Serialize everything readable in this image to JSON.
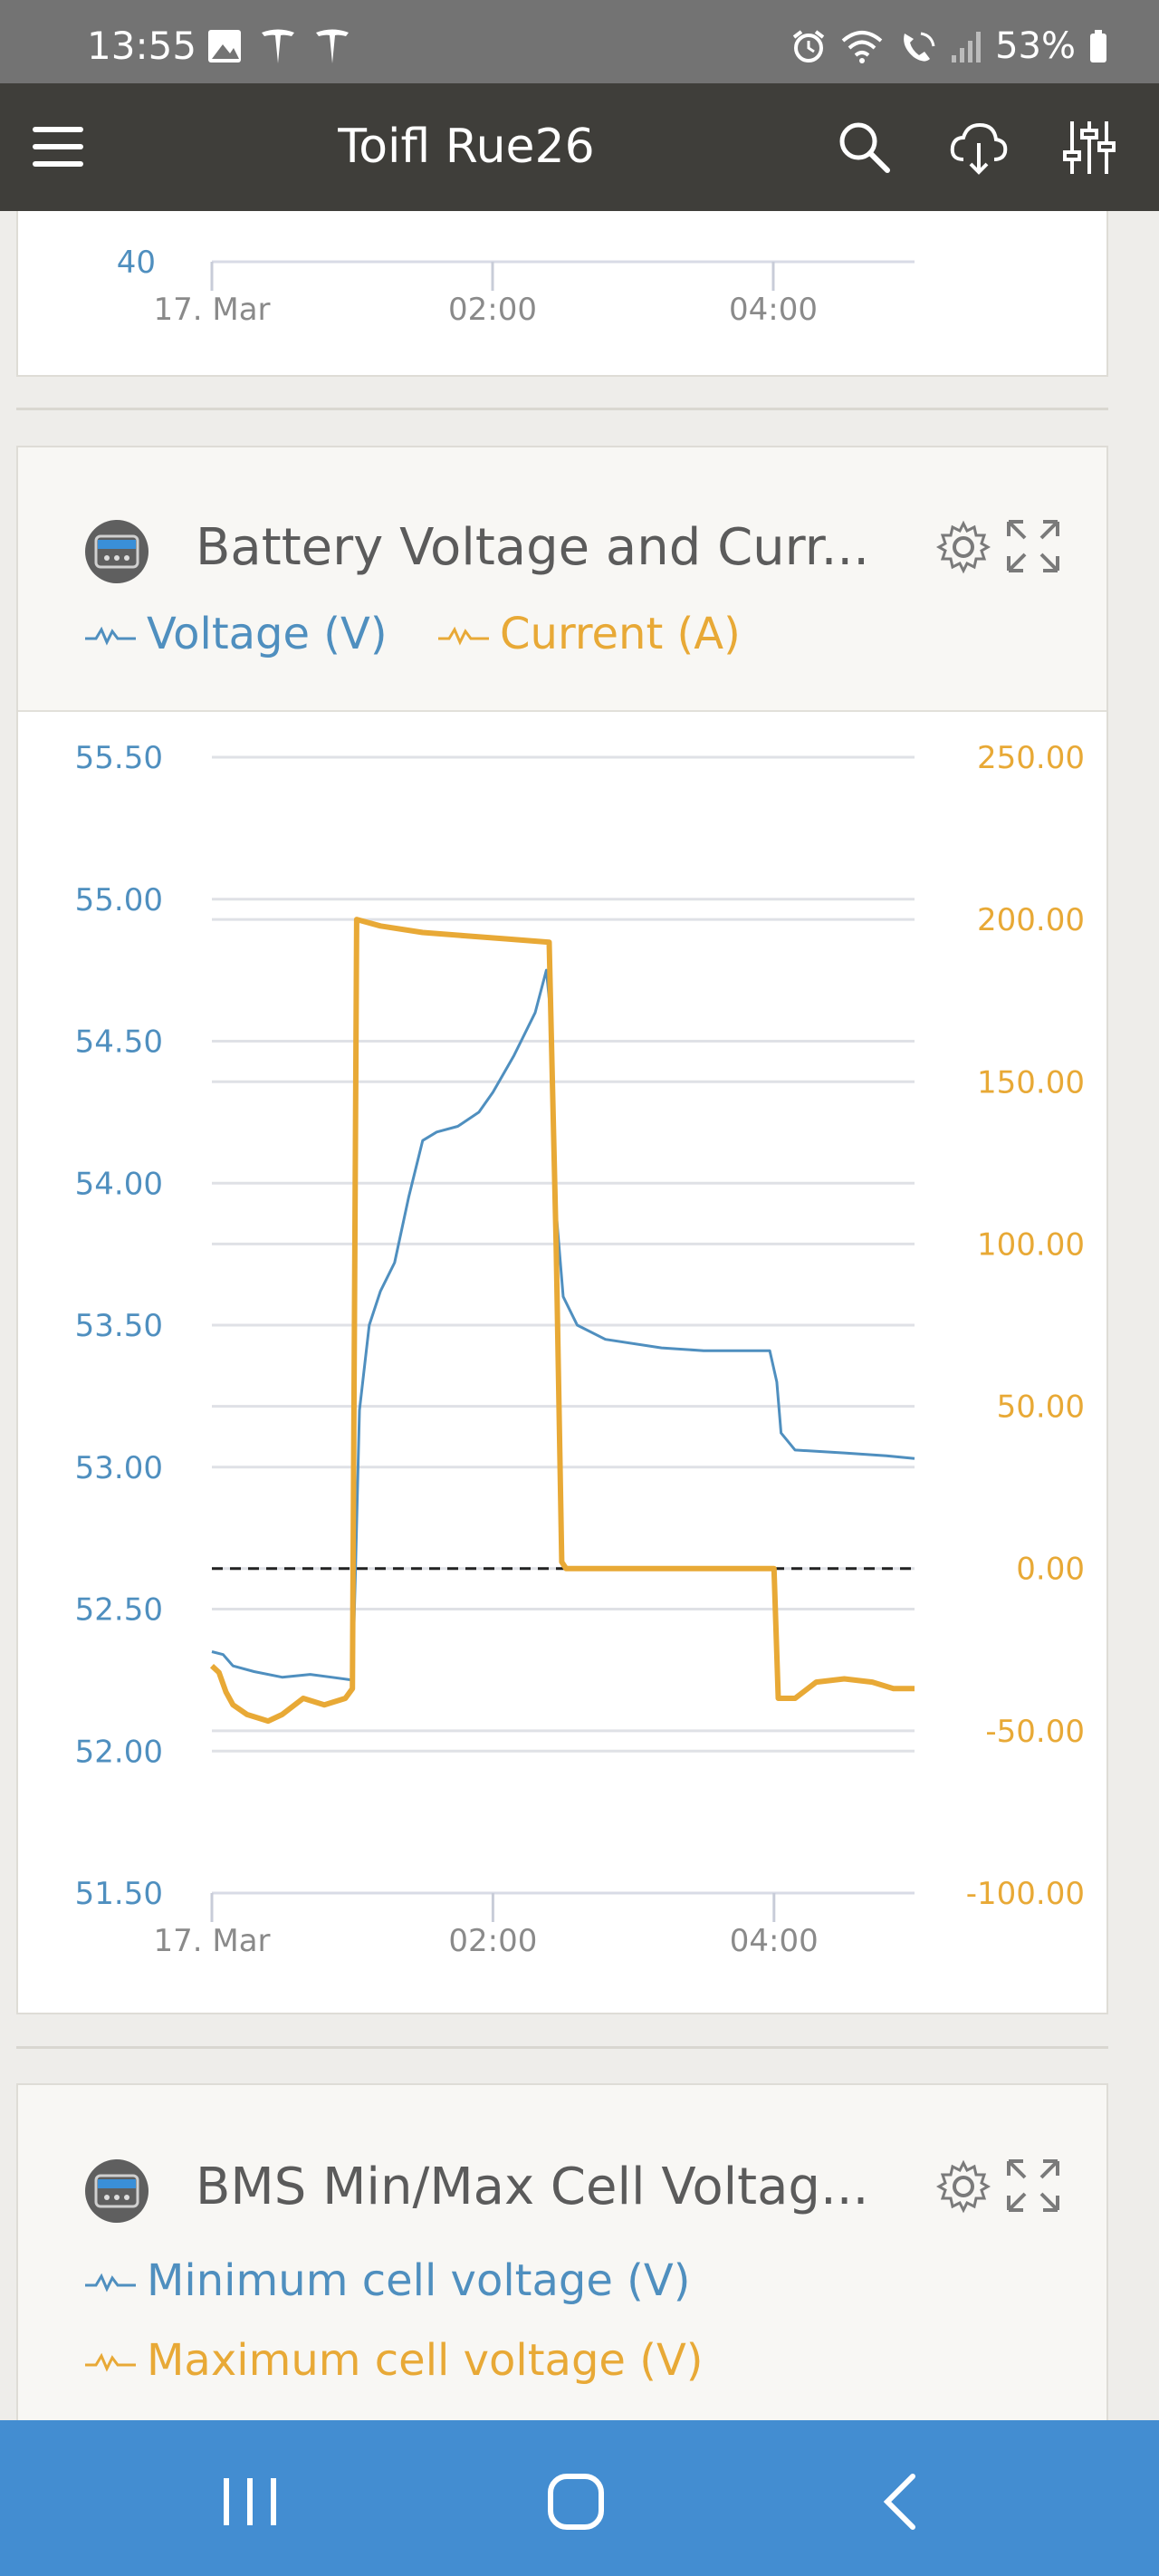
{
  "status_bar": {
    "time": "13:55",
    "battery_percent": "53%"
  },
  "app_bar": {
    "title": "Toifl Rue26",
    "icons": [
      "menu-icon",
      "search-icon",
      "cloud-download-icon",
      "sliders-icon"
    ]
  },
  "top_card": {
    "y_tick_label": "40",
    "x_ticks": [
      "17. Mar",
      "02:00",
      "04:00"
    ]
  },
  "battery_card": {
    "title": "Battery Voltage and Curr...",
    "legend": [
      {
        "label": "Voltage (V)",
        "color": "#4f8fbf"
      },
      {
        "label": "Current (A)",
        "color": "#e8a936"
      }
    ]
  },
  "bms_card": {
    "title": "BMS Min/Max Cell Voltag...",
    "legend": [
      {
        "label": "Minimum cell voltage (V)",
        "color": "#4f8fbf"
      },
      {
        "label": "Maximum cell voltage (V)",
        "color": "#e8a936"
      }
    ]
  },
  "chart_data": {
    "type": "line",
    "x_ticks": [
      "17. Mar",
      "02:00",
      "04:00"
    ],
    "x_tick_hours": [
      0,
      2,
      4
    ],
    "xlim_hours": [
      0,
      5
    ],
    "y_left": {
      "ticks": [
        "51.50",
        "52.00",
        "52.50",
        "53.00",
        "53.50",
        "54.00",
        "54.50",
        "55.00",
        "55.50"
      ],
      "ylim": [
        51.5,
        55.5
      ]
    },
    "y_right": {
      "ticks": [
        "-100.00",
        "-50.00",
        "0.00",
        "50.00",
        "100.00",
        "150.00",
        "200.00",
        "250.00"
      ],
      "ylim": [
        -100,
        250
      ]
    },
    "reference_line": {
      "axis": "right",
      "value": 0,
      "style": "dashed"
    },
    "series": [
      {
        "name": "Voltage (V)",
        "axis": "left",
        "color": "#4f8fbf",
        "points": [
          [
            0,
            52.35
          ],
          [
            0.08,
            52.34
          ],
          [
            0.15,
            52.3
          ],
          [
            0.3,
            52.28
          ],
          [
            0.5,
            52.26
          ],
          [
            0.7,
            52.27
          ],
          [
            0.85,
            52.26
          ],
          [
            1.0,
            52.25
          ],
          [
            1.02,
            52.6
          ],
          [
            1.05,
            53.2
          ],
          [
            1.12,
            53.5
          ],
          [
            1.2,
            53.62
          ],
          [
            1.3,
            53.72
          ],
          [
            1.4,
            53.95
          ],
          [
            1.5,
            54.15
          ],
          [
            1.6,
            54.18
          ],
          [
            1.75,
            54.2
          ],
          [
            1.9,
            54.25
          ],
          [
            2.0,
            54.32
          ],
          [
            2.15,
            54.45
          ],
          [
            2.3,
            54.6
          ],
          [
            2.38,
            54.75
          ],
          [
            2.42,
            54.55
          ],
          [
            2.45,
            53.9
          ],
          [
            2.5,
            53.6
          ],
          [
            2.6,
            53.5
          ],
          [
            2.8,
            53.45
          ],
          [
            3.2,
            53.42
          ],
          [
            3.5,
            53.41
          ],
          [
            3.97,
            53.41
          ],
          [
            4.02,
            53.3
          ],
          [
            4.05,
            53.12
          ],
          [
            4.15,
            53.06
          ],
          [
            4.5,
            53.05
          ],
          [
            4.8,
            53.04
          ],
          [
            5.0,
            53.03
          ]
        ]
      },
      {
        "name": "Current (A)",
        "axis": "right",
        "color": "#e8a936",
        "points": [
          [
            0,
            -30
          ],
          [
            0.05,
            -32
          ],
          [
            0.1,
            -38
          ],
          [
            0.15,
            -42
          ],
          [
            0.25,
            -45
          ],
          [
            0.4,
            -47
          ],
          [
            0.5,
            -45
          ],
          [
            0.65,
            -40
          ],
          [
            0.8,
            -42
          ],
          [
            0.95,
            -40
          ],
          [
            1.0,
            -37
          ],
          [
            1.03,
            200
          ],
          [
            1.2,
            198
          ],
          [
            1.5,
            196
          ],
          [
            1.8,
            195
          ],
          [
            2.1,
            194
          ],
          [
            2.4,
            193
          ],
          [
            2.45,
            100
          ],
          [
            2.49,
            2
          ],
          [
            2.52,
            0
          ],
          [
            2.8,
            0
          ],
          [
            3.2,
            0
          ],
          [
            3.6,
            0
          ],
          [
            4.0,
            0
          ],
          [
            4.03,
            -40
          ],
          [
            4.15,
            -40
          ],
          [
            4.3,
            -35
          ],
          [
            4.5,
            -34
          ],
          [
            4.7,
            -35
          ],
          [
            4.85,
            -37
          ],
          [
            5.0,
            -37
          ]
        ]
      }
    ]
  }
}
